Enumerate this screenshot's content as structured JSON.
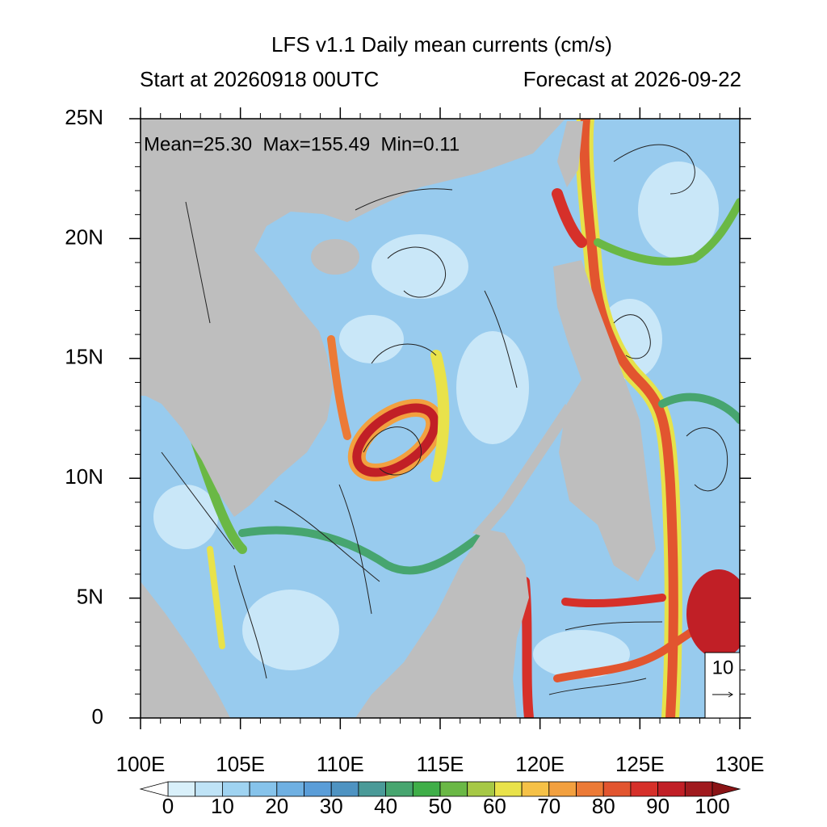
{
  "chart_data": {
    "type": "map",
    "title": "LFS v1.1 Daily mean currents (cm/s)",
    "subtitle_left": "Start at 20260918 00UTC",
    "subtitle_right": "Forecast at 2026-09-22",
    "annotation": "Mean=25.30  Max=155.49  Min=0.11",
    "xlim": [
      100,
      130
    ],
    "ylim": [
      0,
      25
    ],
    "xticks": [
      {
        "value": 100,
        "label": "100E"
      },
      {
        "value": 105,
        "label": "105E"
      },
      {
        "value": 110,
        "label": "110E"
      },
      {
        "value": 115,
        "label": "115E"
      },
      {
        "value": 120,
        "label": "120E"
      },
      {
        "value": 125,
        "label": "125E"
      },
      {
        "value": 130,
        "label": "130E"
      }
    ],
    "yticks": [
      0,
      {
        "value": 5,
        "label": "5N"
      },
      {
        "value": 10,
        "label": "10N"
      },
      {
        "value": 15,
        "label": "15N"
      },
      {
        "value": 20,
        "label": "20N"
      },
      {
        "value": 25,
        "label": "25N"
      }
    ],
    "colorbar": {
      "lim": [
        0,
        100
      ],
      "ticks": [
        0,
        10,
        20,
        30,
        40,
        50,
        60,
        70,
        80,
        90,
        100
      ],
      "colors": [
        "#d9f0fa",
        "#bfe3f6",
        "#9fd3f1",
        "#86c3eb",
        "#6fb0e2",
        "#5a9dd8",
        "#4e93c2",
        "#4a9a98",
        "#47a56f",
        "#3fae48",
        "#6ab845",
        "#a6c845",
        "#e9e24a",
        "#f5c147",
        "#f2a03f",
        "#ec7a36",
        "#e2552f",
        "#d6302a",
        "#c11f26",
        "#a01a1e"
      ],
      "under_color": "#ffffff",
      "over_color": "#8a1416"
    },
    "reference_vector": 10,
    "land_color": "#bebebe"
  }
}
